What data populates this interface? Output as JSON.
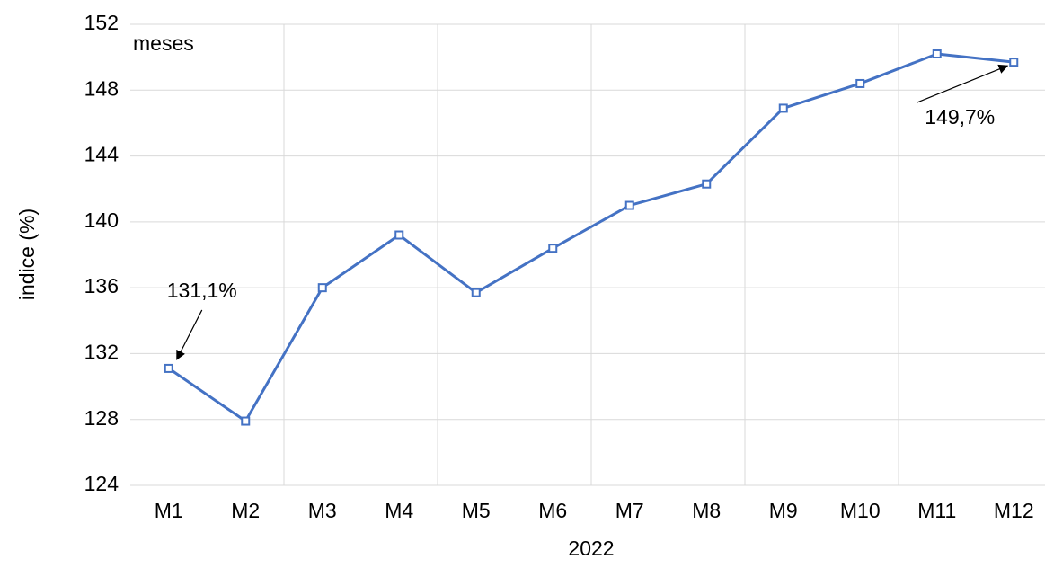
{
  "chart_data": {
    "type": "line",
    "annotation": "meses",
    "xlabel": "2022",
    "ylabel": "indice (%)",
    "categories": [
      "M1",
      "M2",
      "M3",
      "M4",
      "M5",
      "M6",
      "M7",
      "M8",
      "M9",
      "M10",
      "M11",
      "M12"
    ],
    "values": [
      131.1,
      127.9,
      136.0,
      139.2,
      135.7,
      138.4,
      141.0,
      142.3,
      146.9,
      148.4,
      150.2,
      149.7
    ],
    "value_labels": [
      "131,1%",
      null,
      null,
      null,
      null,
      null,
      null,
      null,
      null,
      null,
      null,
      "149,7%"
    ],
    "color": "#4472c4",
    "ylim": [
      124,
      152
    ],
    "yticks": [
      124,
      128,
      132,
      136,
      140,
      144,
      148,
      152
    ],
    "grid": true
  }
}
